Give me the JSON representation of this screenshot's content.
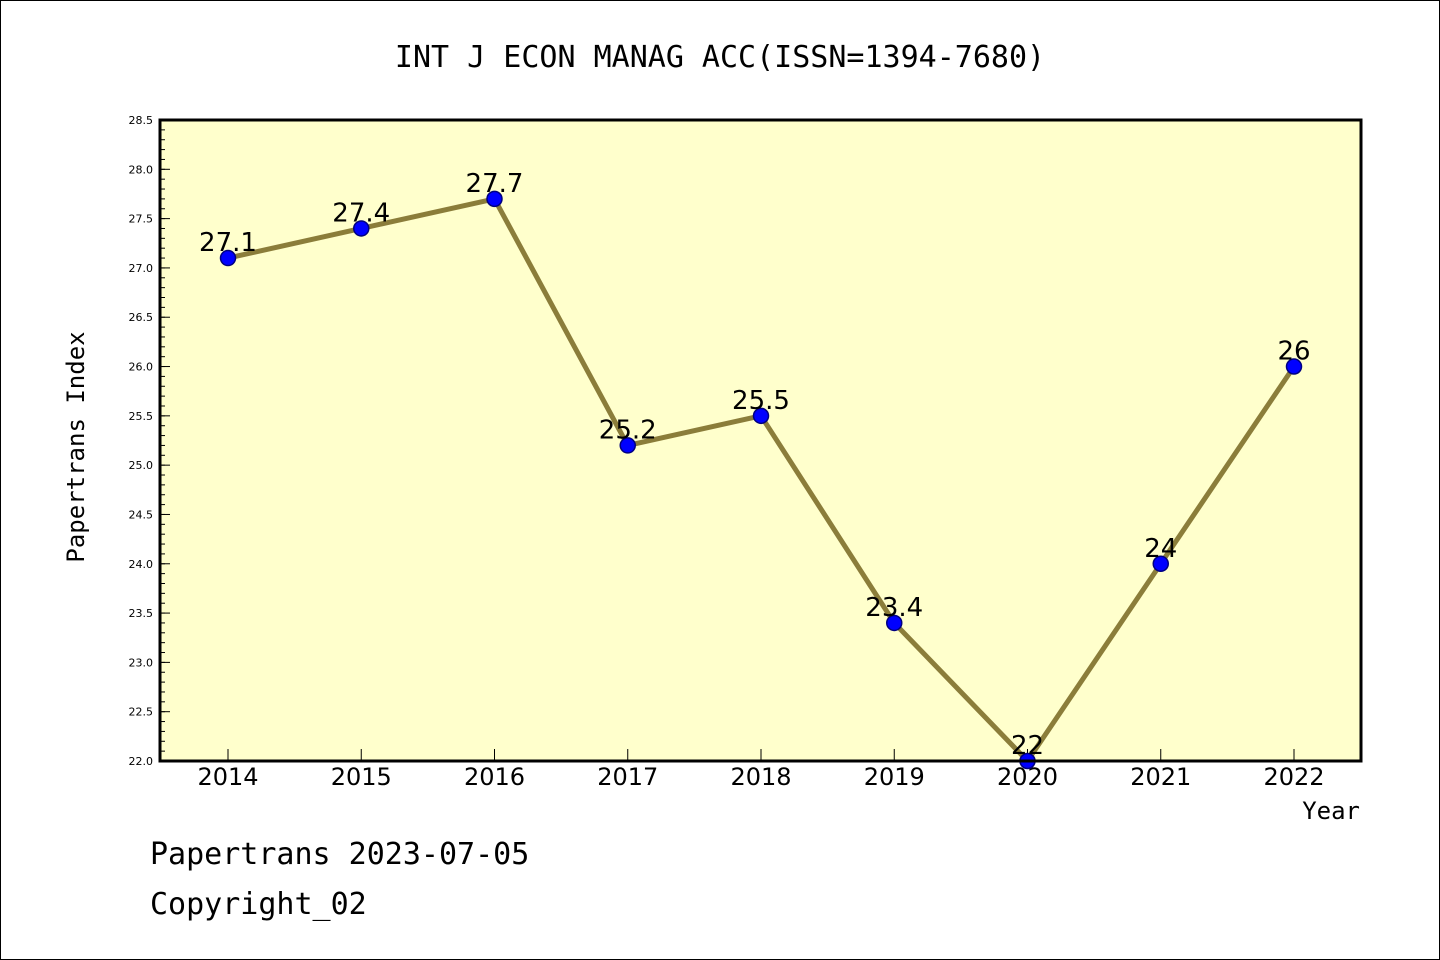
{
  "chart_data": {
    "type": "line",
    "title": "INT J ECON MANAG ACC(ISSN=1394-7680)",
    "xlabel": "Year",
    "ylabel": "Papertrans Index",
    "categories": [
      "2014",
      "2015",
      "2016",
      "2017",
      "2018",
      "2019",
      "2020",
      "2021",
      "2022"
    ],
    "values": [
      27.1,
      27.4,
      27.7,
      25.2,
      25.5,
      23.4,
      22,
      24,
      26
    ],
    "data_labels": [
      "27.1",
      "27.4",
      "27.7",
      "25.2",
      "25.5",
      "23.4",
      "22",
      "24",
      "26"
    ],
    "ylim": [
      22.0,
      28.5
    ],
    "yticks": [
      "22.0",
      "22.5",
      "23.0",
      "23.5",
      "24.0",
      "24.5",
      "25.0",
      "25.5",
      "26.0",
      "26.5",
      "27.0",
      "27.5",
      "28.0",
      "28.5"
    ],
    "grid": false,
    "legend": "none",
    "colors": {
      "plot_background": "#ffffcc",
      "line": "#8b7d3a",
      "marker": "#0000ff",
      "marker_edge": "#000080"
    }
  },
  "footer": {
    "line1": "Papertrans 2023-07-05",
    "line2": "Copyright_02"
  }
}
